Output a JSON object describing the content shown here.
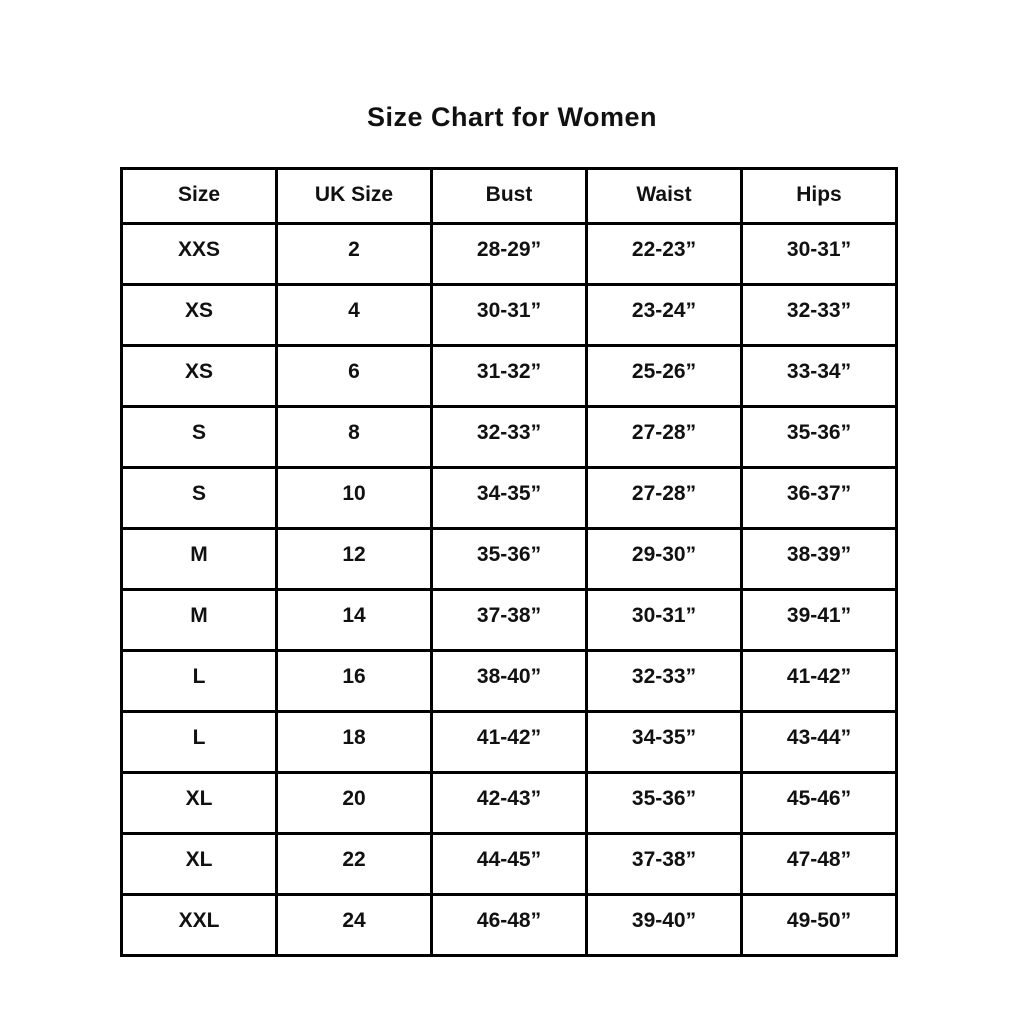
{
  "page": {
    "title": "Size Chart for Women"
  },
  "colors": {
    "background": "#ffffff",
    "text": "#111111",
    "border": "#000000"
  },
  "chart_data": {
    "type": "table",
    "title": "Size Chart for Women",
    "columns": [
      "Size",
      "UK Size",
      "Bust",
      "Waist",
      "Hips"
    ],
    "rows": [
      [
        "XXS",
        "2",
        "28-29”",
        "22-23”",
        "30-31”"
      ],
      [
        "XS",
        "4",
        "30-31”",
        "23-24”",
        "32-33”"
      ],
      [
        "XS",
        "6",
        "31-32”",
        "25-26”",
        "33-34”"
      ],
      [
        "S",
        "8",
        "32-33”",
        "27-28”",
        "35-36”"
      ],
      [
        "S",
        "10",
        "34-35”",
        "27-28”",
        "36-37”"
      ],
      [
        "M",
        "12",
        "35-36”",
        "29-30”",
        "38-39”"
      ],
      [
        "M",
        "14",
        "37-38”",
        "30-31”",
        "39-41”"
      ],
      [
        "L",
        "16",
        "38-40”",
        "32-33”",
        "41-42”"
      ],
      [
        "L",
        "18",
        "41-42”",
        "34-35”",
        "43-44”"
      ],
      [
        "XL",
        "20",
        "42-43”",
        "35-36”",
        "45-46”"
      ],
      [
        "XL",
        "22",
        "44-45”",
        "37-38”",
        "47-48”"
      ],
      [
        "XXL",
        "24",
        "46-48”",
        "39-40”",
        "49-50”"
      ]
    ],
    "layout": {
      "grid": true,
      "text_align": "center",
      "header_position": "top"
    }
  }
}
